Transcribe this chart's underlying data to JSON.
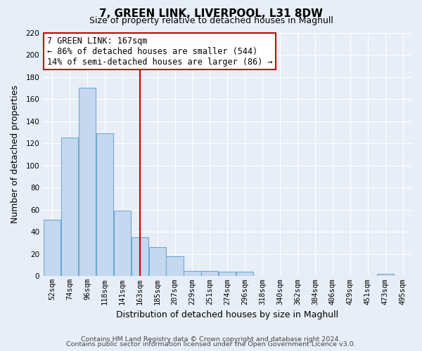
{
  "title": "7, GREEN LINK, LIVERPOOL, L31 8DW",
  "subtitle": "Size of property relative to detached houses in Maghull",
  "xlabel": "Distribution of detached houses by size in Maghull",
  "ylabel": "Number of detached properties",
  "bar_color": "#c5d8ef",
  "bar_edge_color": "#6aabd2",
  "categories": [
    "52sqm",
    "74sqm",
    "96sqm",
    "118sqm",
    "141sqm",
    "163sqm",
    "185sqm",
    "207sqm",
    "229sqm",
    "251sqm",
    "274sqm",
    "296sqm",
    "318sqm",
    "340sqm",
    "362sqm",
    "384sqm",
    "406sqm",
    "429sqm",
    "451sqm",
    "473sqm",
    "495sqm"
  ],
  "values": [
    51,
    125,
    170,
    129,
    59,
    35,
    26,
    18,
    5,
    5,
    4,
    4,
    0,
    0,
    0,
    0,
    0,
    0,
    0,
    2,
    0
  ],
  "ylim": [
    0,
    220
  ],
  "yticks": [
    0,
    20,
    40,
    60,
    80,
    100,
    120,
    140,
    160,
    180,
    200,
    220
  ],
  "vline_index": 5,
  "vline_color": "#cc0000",
  "annotation_title": "7 GREEN LINK: 167sqm",
  "annotation_line1": "← 86% of detached houses are smaller (544)",
  "annotation_line2": "14% of semi-detached houses are larger (86) →",
  "annotation_box_facecolor": "#ffffff",
  "annotation_box_edgecolor": "#cc0000",
  "footnote1": "Contains HM Land Registry data © Crown copyright and database right 2024.",
  "footnote2": "Contains public sector information licensed under the Open Government Licence v3.0.",
  "background_color": "#e8eef7",
  "grid_color": "#ffffff",
  "title_fontsize": 11,
  "subtitle_fontsize": 9,
  "ylabel_fontsize": 9,
  "xlabel_fontsize": 9,
  "tick_fontsize": 7.5,
  "annotation_fontsize": 8.5,
  "footnote_fontsize": 6.8
}
